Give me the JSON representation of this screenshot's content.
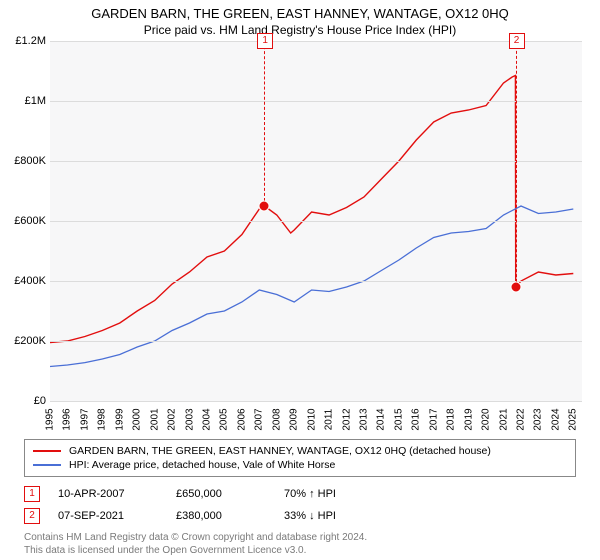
{
  "title": "GARDEN BARN, THE GREEN, EAST HANNEY, WANTAGE, OX12 0HQ",
  "subtitle": "Price paid vs. HM Land Registry's House Price Index (HPI)",
  "chart": {
    "type": "line",
    "background_color": "#f7f7f8",
    "grid_color": "#dcdcdc",
    "x": {
      "min": 1995,
      "max": 2025.5,
      "ticks": [
        1995,
        1996,
        1997,
        1998,
        1999,
        2000,
        2001,
        2002,
        2003,
        2004,
        2005,
        2006,
        2007,
        2008,
        2009,
        2010,
        2011,
        2012,
        2013,
        2014,
        2015,
        2016,
        2017,
        2018,
        2019,
        2020,
        2021,
        2022,
        2023,
        2024,
        2025
      ]
    },
    "y": {
      "min": 0,
      "max": 1200000,
      "ticks": [
        {
          "v": 0,
          "label": "£0"
        },
        {
          "v": 200000,
          "label": "£200K"
        },
        {
          "v": 400000,
          "label": "£400K"
        },
        {
          "v": 600000,
          "label": "£600K"
        },
        {
          "v": 800000,
          "label": "£800K"
        },
        {
          "v": 1000000,
          "label": "£1M"
        },
        {
          "v": 1200000,
          "label": "£1.2M"
        }
      ]
    },
    "series": [
      {
        "name": "property",
        "color": "#e20e0e",
        "width": 1.4,
        "data": [
          [
            1995,
            195000
          ],
          [
            1996,
            200000
          ],
          [
            1997,
            215000
          ],
          [
            1998,
            235000
          ],
          [
            1999,
            260000
          ],
          [
            2000,
            300000
          ],
          [
            2001,
            335000
          ],
          [
            2002,
            390000
          ],
          [
            2003,
            430000
          ],
          [
            2004,
            480000
          ],
          [
            2005,
            500000
          ],
          [
            2006,
            555000
          ],
          [
            2007,
            640000
          ],
          [
            2007.3,
            650000
          ],
          [
            2008,
            620000
          ],
          [
            2008.8,
            560000
          ],
          [
            2009,
            570000
          ],
          [
            2010,
            630000
          ],
          [
            2011,
            620000
          ],
          [
            2012,
            645000
          ],
          [
            2013,
            680000
          ],
          [
            2014,
            740000
          ],
          [
            2015,
            800000
          ],
          [
            2016,
            870000
          ],
          [
            2017,
            930000
          ],
          [
            2018,
            960000
          ],
          [
            2019,
            970000
          ],
          [
            2020,
            985000
          ],
          [
            2021,
            1060000
          ],
          [
            2021.5,
            1080000
          ],
          [
            2021.68,
            1085000
          ],
          [
            2021.7,
            380000
          ],
          [
            2022,
            400000
          ],
          [
            2023,
            430000
          ],
          [
            2024,
            420000
          ],
          [
            2025,
            425000
          ]
        ]
      },
      {
        "name": "hpi",
        "color": "#4a6fd6",
        "width": 1.3,
        "data": [
          [
            1995,
            115000
          ],
          [
            1996,
            120000
          ],
          [
            1997,
            128000
          ],
          [
            1998,
            140000
          ],
          [
            1999,
            155000
          ],
          [
            2000,
            180000
          ],
          [
            2001,
            200000
          ],
          [
            2002,
            235000
          ],
          [
            2003,
            260000
          ],
          [
            2004,
            290000
          ],
          [
            2005,
            300000
          ],
          [
            2006,
            330000
          ],
          [
            2007,
            370000
          ],
          [
            2008,
            355000
          ],
          [
            2009,
            330000
          ],
          [
            2010,
            370000
          ],
          [
            2011,
            365000
          ],
          [
            2012,
            380000
          ],
          [
            2013,
            400000
          ],
          [
            2014,
            435000
          ],
          [
            2015,
            470000
          ],
          [
            2016,
            510000
          ],
          [
            2017,
            545000
          ],
          [
            2018,
            560000
          ],
          [
            2019,
            565000
          ],
          [
            2020,
            575000
          ],
          [
            2021,
            620000
          ],
          [
            2022,
            650000
          ],
          [
            2023,
            625000
          ],
          [
            2024,
            630000
          ],
          [
            2025,
            640000
          ]
        ]
      }
    ],
    "markers": [
      {
        "n": "1",
        "x": 2007.28,
        "y": 650000,
        "color": "#e20e0e"
      },
      {
        "n": "2",
        "x": 2021.69,
        "y": 380000,
        "color": "#e20e0e"
      }
    ]
  },
  "legend": {
    "items": [
      {
        "color": "#e20e0e",
        "label": "GARDEN BARN, THE GREEN, EAST HANNEY, WANTAGE, OX12 0HQ (detached house)"
      },
      {
        "color": "#4a6fd6",
        "label": "HPI: Average price, detached house, Vale of White Horse"
      }
    ]
  },
  "events": [
    {
      "n": "1",
      "color": "#e20e0e",
      "date": "10-APR-2007",
      "price": "£650,000",
      "delta": "70% ↑ HPI"
    },
    {
      "n": "2",
      "color": "#e20e0e",
      "date": "07-SEP-2021",
      "price": "£380,000",
      "delta": "33% ↓ HPI"
    }
  ],
  "footnote_line1": "Contains HM Land Registry data © Crown copyright and database right 2024.",
  "footnote_line2": "This data is licensed under the Open Government Licence v3.0."
}
